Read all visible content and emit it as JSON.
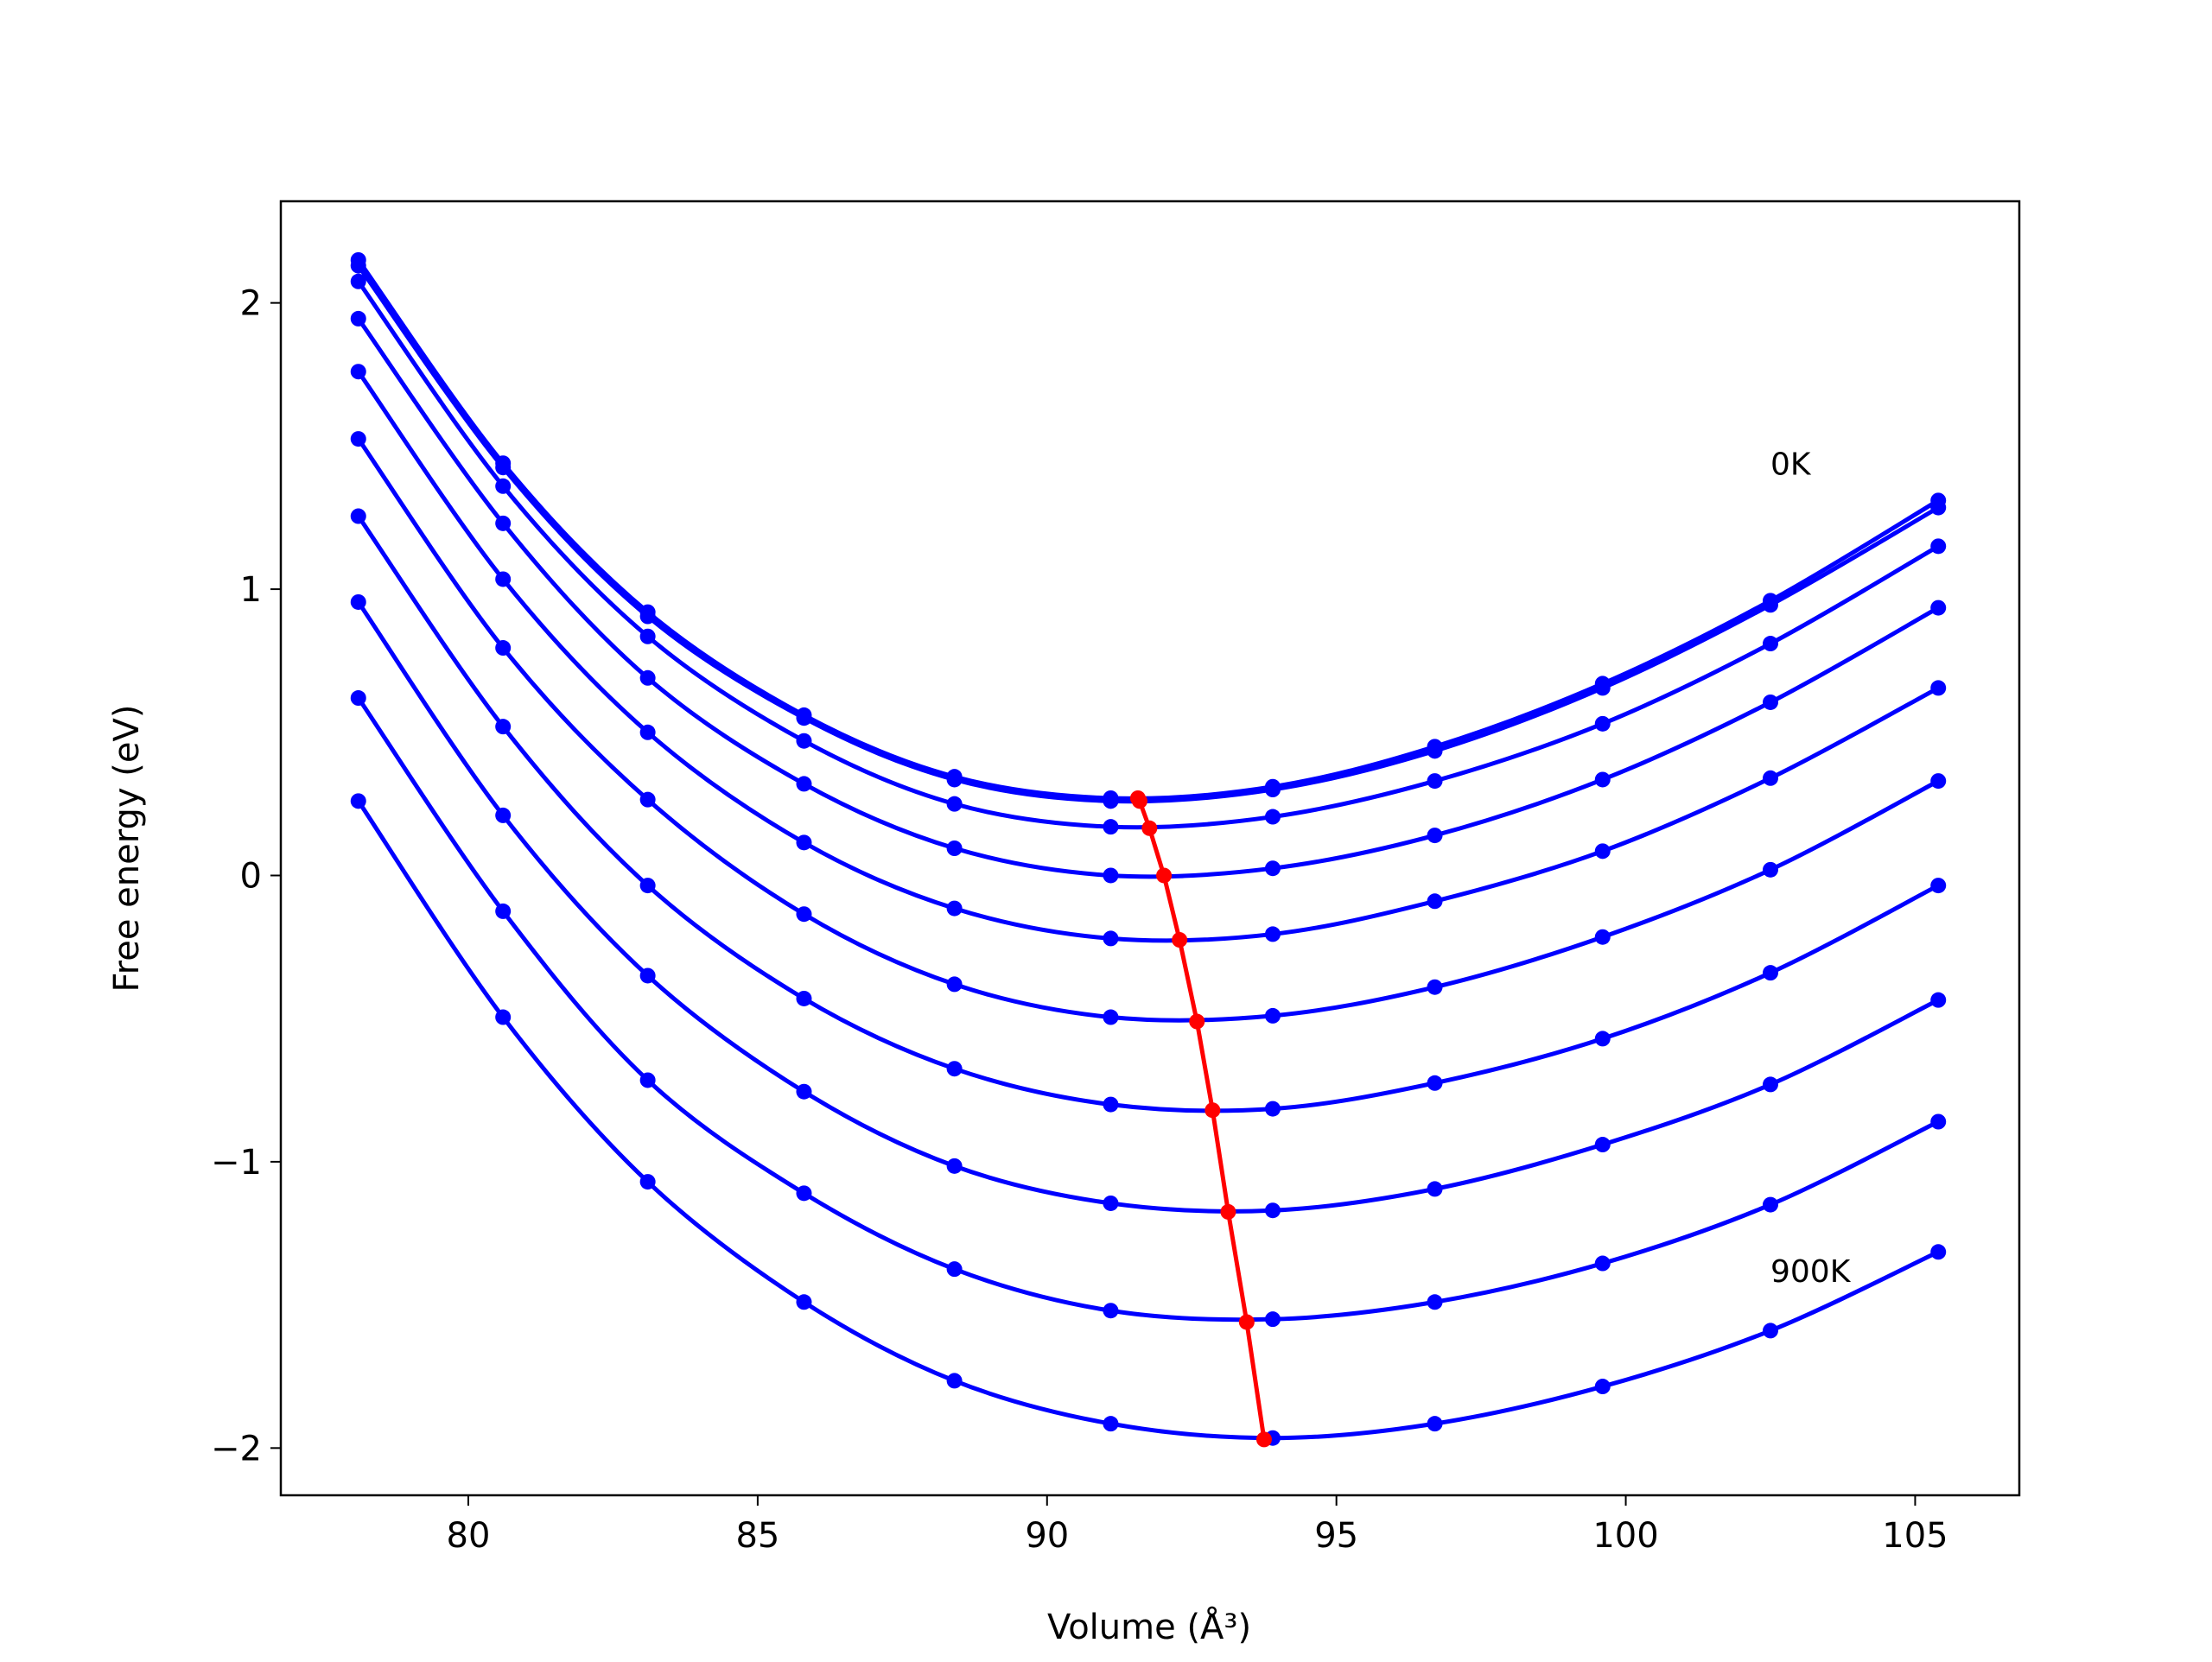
{
  "chart_data": {
    "type": "line",
    "xlabel": "Volume (Å³)",
    "ylabel": "Free energy (eV)",
    "annotations": [
      {
        "text": "0K",
        "x": 102.5,
        "y": 1.4
      },
      {
        "text": "900K",
        "x": 102.5,
        "y": -1.42
      }
    ],
    "x": [
      78.1,
      80.6,
      83.1,
      85.8,
      88.4,
      91.1,
      93.9,
      96.7,
      99.6,
      102.5,
      105.4
    ],
    "series": [
      {
        "color": "#0000ff",
        "values": [
          2.15,
          1.44,
          0.92,
          0.56,
          0.345,
          0.27,
          0.31,
          0.45,
          0.67,
          0.96,
          1.31
        ]
      },
      {
        "color": "#0000ff",
        "values": [
          2.13,
          1.425,
          0.905,
          0.55,
          0.335,
          0.26,
          0.3,
          0.435,
          0.655,
          0.945,
          1.285
        ]
      },
      {
        "color": "#0000ff",
        "values": [
          2.075,
          1.36,
          0.835,
          0.47,
          0.25,
          0.17,
          0.205,
          0.33,
          0.53,
          0.81,
          1.15
        ]
      },
      {
        "color": "#0000ff",
        "values": [
          1.945,
          1.23,
          0.69,
          0.32,
          0.095,
          0.0,
          0.025,
          0.14,
          0.335,
          0.605,
          0.935
        ]
      },
      {
        "color": "#0000ff",
        "values": [
          1.76,
          1.035,
          0.5,
          0.115,
          -0.115,
          -0.22,
          -0.205,
          -0.09,
          0.085,
          0.34,
          0.655
        ]
      },
      {
        "color": "#0000ff",
        "values": [
          1.525,
          0.795,
          0.265,
          -0.135,
          -0.38,
          -0.495,
          -0.49,
          -0.39,
          -0.215,
          0.02,
          0.33
        ]
      },
      {
        "color": "#0000ff",
        "values": [
          1.255,
          0.52,
          -0.035,
          -0.43,
          -0.675,
          -0.8,
          -0.815,
          -0.725,
          -0.57,
          -0.34,
          -0.035
        ]
      },
      {
        "color": "#0000ff",
        "values": [
          0.955,
          0.21,
          -0.35,
          -0.755,
          -1.015,
          -1.145,
          -1.17,
          -1.095,
          -0.94,
          -0.73,
          -0.435
        ]
      },
      {
        "color": "#0000ff",
        "values": [
          0.62,
          -0.125,
          -0.715,
          -1.11,
          -1.375,
          -1.52,
          -1.55,
          -1.49,
          -1.355,
          -1.15,
          -0.86
        ]
      },
      {
        "color": "#0000ff",
        "values": [
          0.26,
          -0.495,
          -1.07,
          -1.49,
          -1.765,
          -1.915,
          -1.965,
          -1.915,
          -1.785,
          -1.59,
          -1.315
        ]
      },
      {
        "color": "#ff0000",
        "x": [
          91.57,
          91.6,
          91.77,
          92.02,
          92.29,
          92.59,
          92.86,
          93.13,
          93.45,
          93.75
        ],
        "values": [
          0.27,
          0.26,
          0.165,
          0.0,
          -0.225,
          -0.51,
          -0.82,
          -1.175,
          -1.56,
          -1.97
        ]
      }
    ],
    "xlim": [
      76.76,
      106.8
    ],
    "ylim": [
      -2.165,
      2.355
    ],
    "xticks": [
      80,
      85,
      90,
      95,
      100,
      105
    ],
    "yticks": [
      {
        "value": -2,
        "label": "−2"
      },
      {
        "value": -1,
        "label": "−1"
      },
      0,
      1,
      2
    ],
    "grid": false
  }
}
